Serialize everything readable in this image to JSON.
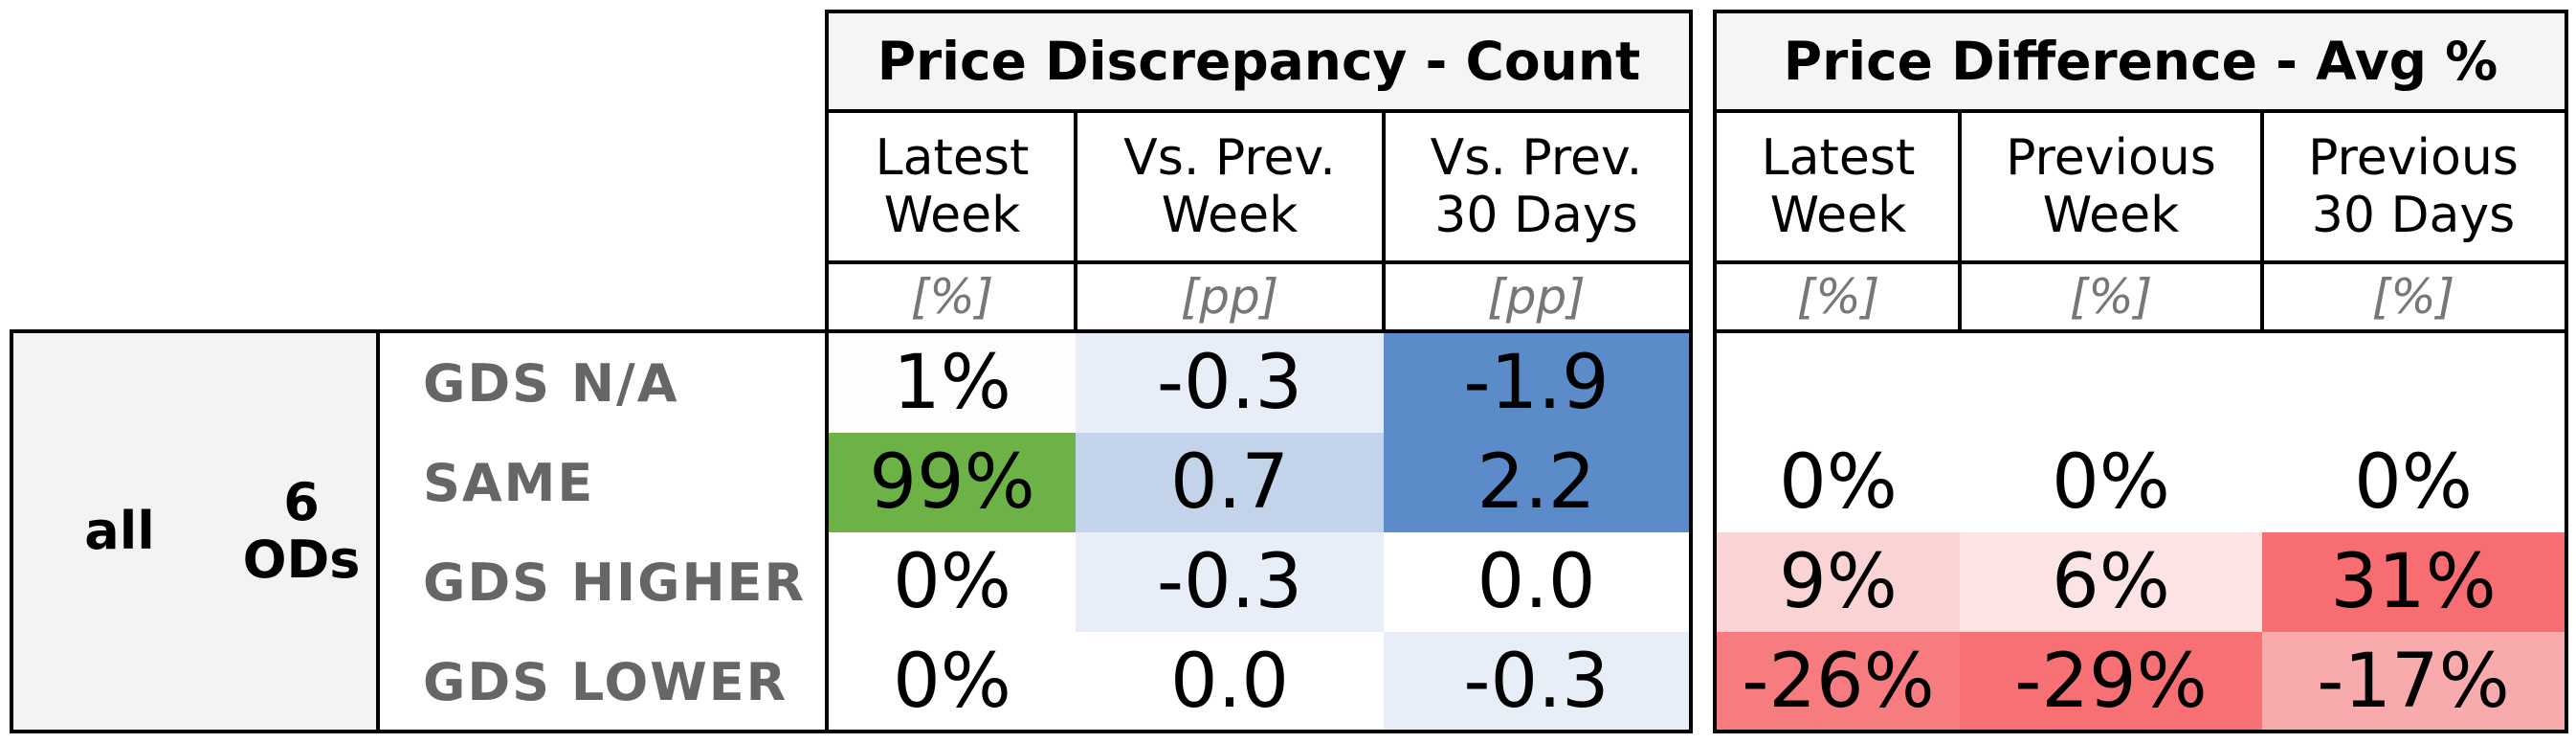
{
  "chart_data": {
    "type": "table",
    "sections": [
      {
        "title": "Price Discrepancy - Count",
        "columns": [
          {
            "label": "Latest\nWeek",
            "unit": "[%]"
          },
          {
            "label": "Vs. Prev.\nWeek",
            "unit": "[pp]"
          },
          {
            "label": "Vs. Prev.\n30 Days",
            "unit": "[pp]"
          }
        ]
      },
      {
        "title": "Price Difference - Avg %",
        "columns": [
          {
            "label": "Latest\nWeek",
            "unit": "[%]"
          },
          {
            "label": "Previous\nWeek",
            "unit": "[%]"
          },
          {
            "label": "Previous\n30 Days",
            "unit": "[%]"
          }
        ]
      }
    ],
    "group_labels": [
      "all",
      "6\nODs"
    ],
    "rows": [
      {
        "label": "GDS N/A",
        "values": [
          "1%",
          "-0.3",
          "-1.9",
          "",
          "",
          ""
        ],
        "colors": [
          "#fdfdfd",
          "#e7eef7",
          "#5b8bc8",
          "#ffffff",
          "#ffffff",
          "#ffffff"
        ]
      },
      {
        "label": "SAME",
        "values": [
          "99%",
          "0.7",
          "2.2",
          "0%",
          "0%",
          "0%"
        ],
        "colors": [
          "#6cb247",
          "#c3d4ea",
          "#5b8bc8",
          "#ffffff",
          "#ffffff",
          "#ffffff"
        ]
      },
      {
        "label": "GDS HIGHER",
        "values": [
          "0%",
          "-0.3",
          "0.0",
          "9%",
          "6%",
          "31%"
        ],
        "colors": [
          "#ffffff",
          "#e7eef7",
          "#ffffff",
          "#fad4d5",
          "#fce3e4",
          "#f76d71"
        ]
      },
      {
        "label": "GDS LOWER",
        "values": [
          "0%",
          "0.0",
          "-0.3",
          "-26%",
          "-29%",
          "-17%"
        ],
        "colors": [
          "#ffffff",
          "#ffffff",
          "#e7eef7",
          "#f77c80",
          "#f77174",
          "#f9aaac"
        ]
      }
    ]
  }
}
